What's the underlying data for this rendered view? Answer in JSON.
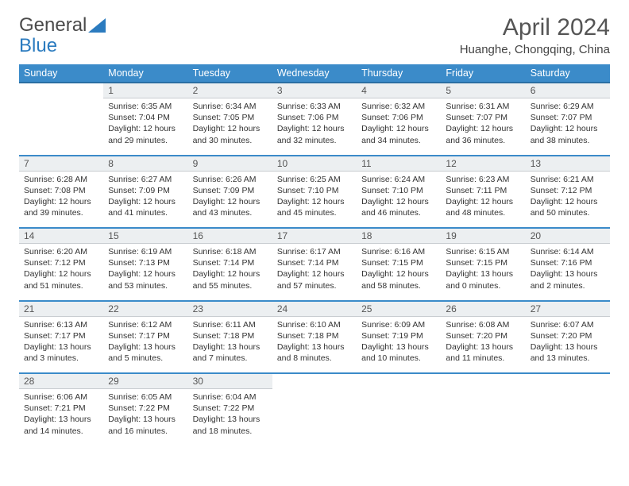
{
  "logo": {
    "part1": "General",
    "part2": "Blue"
  },
  "title": "April 2024",
  "location": "Huanghe, Chongqing, China",
  "colors": {
    "header_bg": "#3b8bc9",
    "header_border": "#2a6fa3",
    "daynum_bg": "#eceff1",
    "row_border": "#3b8bc9",
    "text": "#333333"
  },
  "day_headers": [
    "Sunday",
    "Monday",
    "Tuesday",
    "Wednesday",
    "Thursday",
    "Friday",
    "Saturday"
  ],
  "weeks": [
    {
      "nums": [
        "",
        "1",
        "2",
        "3",
        "4",
        "5",
        "6"
      ],
      "cells": [
        null,
        {
          "sunrise": "Sunrise: 6:35 AM",
          "sunset": "Sunset: 7:04 PM",
          "day1": "Daylight: 12 hours",
          "day2": "and 29 minutes."
        },
        {
          "sunrise": "Sunrise: 6:34 AM",
          "sunset": "Sunset: 7:05 PM",
          "day1": "Daylight: 12 hours",
          "day2": "and 30 minutes."
        },
        {
          "sunrise": "Sunrise: 6:33 AM",
          "sunset": "Sunset: 7:06 PM",
          "day1": "Daylight: 12 hours",
          "day2": "and 32 minutes."
        },
        {
          "sunrise": "Sunrise: 6:32 AM",
          "sunset": "Sunset: 7:06 PM",
          "day1": "Daylight: 12 hours",
          "day2": "and 34 minutes."
        },
        {
          "sunrise": "Sunrise: 6:31 AM",
          "sunset": "Sunset: 7:07 PM",
          "day1": "Daylight: 12 hours",
          "day2": "and 36 minutes."
        },
        {
          "sunrise": "Sunrise: 6:29 AM",
          "sunset": "Sunset: 7:07 PM",
          "day1": "Daylight: 12 hours",
          "day2": "and 38 minutes."
        }
      ]
    },
    {
      "nums": [
        "7",
        "8",
        "9",
        "10",
        "11",
        "12",
        "13"
      ],
      "cells": [
        {
          "sunrise": "Sunrise: 6:28 AM",
          "sunset": "Sunset: 7:08 PM",
          "day1": "Daylight: 12 hours",
          "day2": "and 39 minutes."
        },
        {
          "sunrise": "Sunrise: 6:27 AM",
          "sunset": "Sunset: 7:09 PM",
          "day1": "Daylight: 12 hours",
          "day2": "and 41 minutes."
        },
        {
          "sunrise": "Sunrise: 6:26 AM",
          "sunset": "Sunset: 7:09 PM",
          "day1": "Daylight: 12 hours",
          "day2": "and 43 minutes."
        },
        {
          "sunrise": "Sunrise: 6:25 AM",
          "sunset": "Sunset: 7:10 PM",
          "day1": "Daylight: 12 hours",
          "day2": "and 45 minutes."
        },
        {
          "sunrise": "Sunrise: 6:24 AM",
          "sunset": "Sunset: 7:10 PM",
          "day1": "Daylight: 12 hours",
          "day2": "and 46 minutes."
        },
        {
          "sunrise": "Sunrise: 6:23 AM",
          "sunset": "Sunset: 7:11 PM",
          "day1": "Daylight: 12 hours",
          "day2": "and 48 minutes."
        },
        {
          "sunrise": "Sunrise: 6:21 AM",
          "sunset": "Sunset: 7:12 PM",
          "day1": "Daylight: 12 hours",
          "day2": "and 50 minutes."
        }
      ]
    },
    {
      "nums": [
        "14",
        "15",
        "16",
        "17",
        "18",
        "19",
        "20"
      ],
      "cells": [
        {
          "sunrise": "Sunrise: 6:20 AM",
          "sunset": "Sunset: 7:12 PM",
          "day1": "Daylight: 12 hours",
          "day2": "and 51 minutes."
        },
        {
          "sunrise": "Sunrise: 6:19 AM",
          "sunset": "Sunset: 7:13 PM",
          "day1": "Daylight: 12 hours",
          "day2": "and 53 minutes."
        },
        {
          "sunrise": "Sunrise: 6:18 AM",
          "sunset": "Sunset: 7:14 PM",
          "day1": "Daylight: 12 hours",
          "day2": "and 55 minutes."
        },
        {
          "sunrise": "Sunrise: 6:17 AM",
          "sunset": "Sunset: 7:14 PM",
          "day1": "Daylight: 12 hours",
          "day2": "and 57 minutes."
        },
        {
          "sunrise": "Sunrise: 6:16 AM",
          "sunset": "Sunset: 7:15 PM",
          "day1": "Daylight: 12 hours",
          "day2": "and 58 minutes."
        },
        {
          "sunrise": "Sunrise: 6:15 AM",
          "sunset": "Sunset: 7:15 PM",
          "day1": "Daylight: 13 hours",
          "day2": "and 0 minutes."
        },
        {
          "sunrise": "Sunrise: 6:14 AM",
          "sunset": "Sunset: 7:16 PM",
          "day1": "Daylight: 13 hours",
          "day2": "and 2 minutes."
        }
      ]
    },
    {
      "nums": [
        "21",
        "22",
        "23",
        "24",
        "25",
        "26",
        "27"
      ],
      "cells": [
        {
          "sunrise": "Sunrise: 6:13 AM",
          "sunset": "Sunset: 7:17 PM",
          "day1": "Daylight: 13 hours",
          "day2": "and 3 minutes."
        },
        {
          "sunrise": "Sunrise: 6:12 AM",
          "sunset": "Sunset: 7:17 PM",
          "day1": "Daylight: 13 hours",
          "day2": "and 5 minutes."
        },
        {
          "sunrise": "Sunrise: 6:11 AM",
          "sunset": "Sunset: 7:18 PM",
          "day1": "Daylight: 13 hours",
          "day2": "and 7 minutes."
        },
        {
          "sunrise": "Sunrise: 6:10 AM",
          "sunset": "Sunset: 7:18 PM",
          "day1": "Daylight: 13 hours",
          "day2": "and 8 minutes."
        },
        {
          "sunrise": "Sunrise: 6:09 AM",
          "sunset": "Sunset: 7:19 PM",
          "day1": "Daylight: 13 hours",
          "day2": "and 10 minutes."
        },
        {
          "sunrise": "Sunrise: 6:08 AM",
          "sunset": "Sunset: 7:20 PM",
          "day1": "Daylight: 13 hours",
          "day2": "and 11 minutes."
        },
        {
          "sunrise": "Sunrise: 6:07 AM",
          "sunset": "Sunset: 7:20 PM",
          "day1": "Daylight: 13 hours",
          "day2": "and 13 minutes."
        }
      ]
    },
    {
      "nums": [
        "28",
        "29",
        "30",
        "",
        "",
        "",
        ""
      ],
      "cells": [
        {
          "sunrise": "Sunrise: 6:06 AM",
          "sunset": "Sunset: 7:21 PM",
          "day1": "Daylight: 13 hours",
          "day2": "and 14 minutes."
        },
        {
          "sunrise": "Sunrise: 6:05 AM",
          "sunset": "Sunset: 7:22 PM",
          "day1": "Daylight: 13 hours",
          "day2": "and 16 minutes."
        },
        {
          "sunrise": "Sunrise: 6:04 AM",
          "sunset": "Sunset: 7:22 PM",
          "day1": "Daylight: 13 hours",
          "day2": "and 18 minutes."
        },
        null,
        null,
        null,
        null
      ]
    }
  ]
}
